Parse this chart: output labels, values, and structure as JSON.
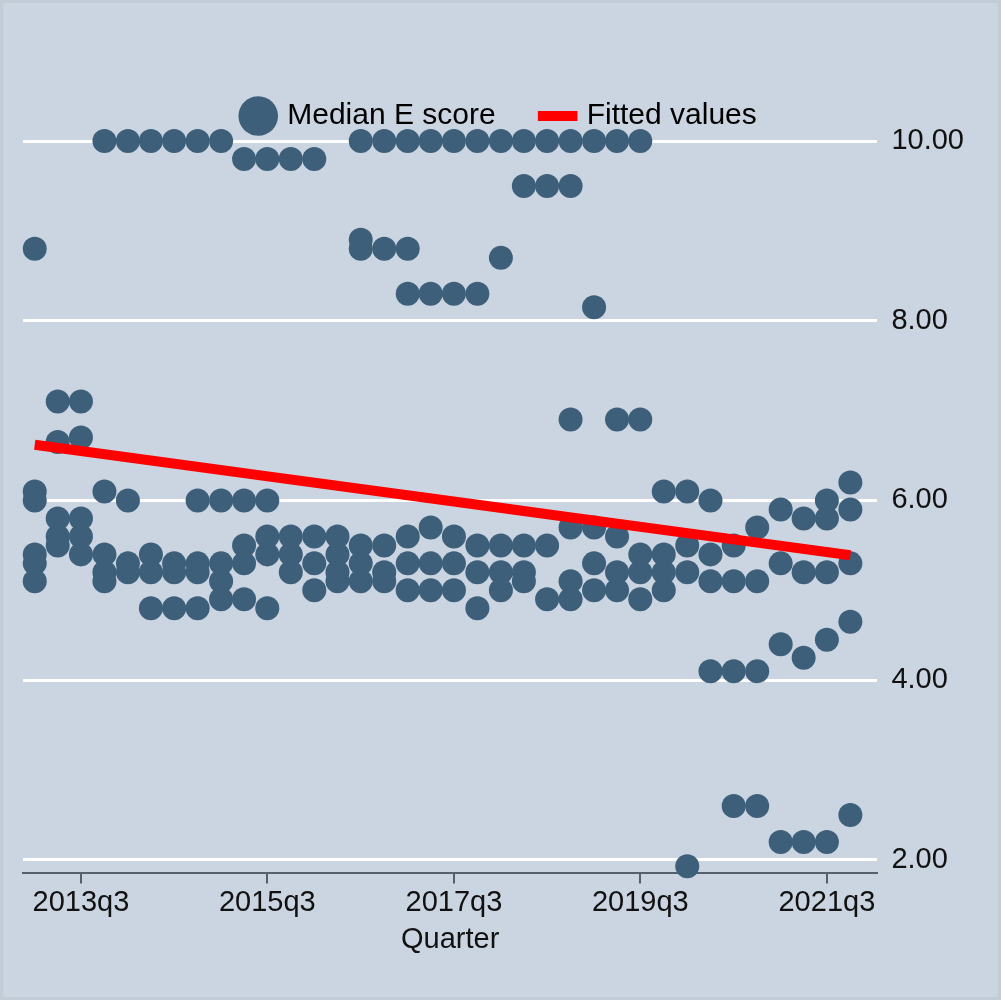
{
  "chart_data": {
    "type": "scatter",
    "xlabel": "Quarter",
    "legend": "top",
    "grid": "y",
    "xlim": [
      "2012-11-16",
      "2022-01-15"
    ],
    "xticks": [
      {
        "value": "2013-07",
        "label": "2013q3"
      },
      {
        "value": "2015-07",
        "label": "2015q3"
      },
      {
        "value": "2017-07",
        "label": "2017q3"
      },
      {
        "value": "2019-07",
        "label": "2019q3"
      },
      {
        "value": "2021-07",
        "label": "2021q3"
      }
    ],
    "ylim": [
      1.85,
      10
    ],
    "yticks": [
      {
        "value": 2,
        "label": "2.00"
      },
      {
        "value": 4,
        "label": "4.00"
      },
      {
        "value": 6,
        "label": "6.00"
      },
      {
        "value": 8,
        "label": "8.00"
      },
      {
        "value": 10,
        "label": "10.00"
      }
    ],
    "series": [
      {
        "name": "Median E score",
        "type": "scatter",
        "marker": "circle",
        "color": "#3d5f7a",
        "x": [
          "2013-01",
          "2013-01",
          "2013-01",
          "2013-01",
          "2013-01",
          "2013-01",
          "2013-04",
          "2013-04",
          "2013-04",
          "2013-04",
          "2013-04",
          "2013-07",
          "2013-07",
          "2013-07",
          "2013-07",
          "2013-07",
          "2013-10",
          "2013-10",
          "2013-10",
          "2013-10",
          "2013-10",
          "2014-01",
          "2014-01",
          "2014-01",
          "2014-01",
          "2014-04",
          "2014-04",
          "2014-04",
          "2014-04",
          "2014-07",
          "2014-07",
          "2014-07",
          "2014-07",
          "2014-10",
          "2014-10",
          "2014-10",
          "2014-10",
          "2014-10",
          "2015-01",
          "2015-01",
          "2015-01",
          "2015-01",
          "2015-01",
          "2015-04",
          "2015-04",
          "2015-04",
          "2015-04",
          "2015-04",
          "2015-07",
          "2015-07",
          "2015-07",
          "2015-07",
          "2015-07",
          "2015-10",
          "2015-10",
          "2015-10",
          "2015-10",
          "2016-01",
          "2016-01",
          "2016-01",
          "2016-01",
          "2016-04",
          "2016-04",
          "2016-04",
          "2016-04",
          "2016-07",
          "2016-07",
          "2016-07",
          "2016-07",
          "2016-07",
          "2016-07",
          "2016-10",
          "2016-10",
          "2016-10",
          "2016-10",
          "2016-10",
          "2017-01",
          "2017-01",
          "2017-01",
          "2017-01",
          "2017-01",
          "2017-01",
          "2017-04",
          "2017-04",
          "2017-04",
          "2017-04",
          "2017-04",
          "2017-07",
          "2017-07",
          "2017-07",
          "2017-07",
          "2017-07",
          "2017-10",
          "2017-10",
          "2017-10",
          "2017-10",
          "2017-10",
          "2018-01",
          "2018-01",
          "2018-01",
          "2018-01",
          "2018-01",
          "2018-04",
          "2018-04",
          "2018-04",
          "2018-04",
          "2018-04",
          "2018-07",
          "2018-07",
          "2018-07",
          "2018-07",
          "2018-10",
          "2018-10",
          "2018-10",
          "2018-10",
          "2018-10",
          "2018-10",
          "2019-01",
          "2019-01",
          "2019-01",
          "2019-01",
          "2019-01",
          "2019-04",
          "2019-04",
          "2019-04",
          "2019-04",
          "2019-04",
          "2019-07",
          "2019-07",
          "2019-07",
          "2019-07",
          "2019-07",
          "2019-10",
          "2019-10",
          "2019-10",
          "2019-10",
          "2020-01",
          "2020-01",
          "2020-01",
          "2020-01",
          "2020-04",
          "2020-04",
          "2020-04",
          "2020-04",
          "2020-07",
          "2020-07",
          "2020-07",
          "2020-07",
          "2020-10",
          "2020-10",
          "2020-10",
          "2020-10",
          "2021-01",
          "2021-01",
          "2021-01",
          "2021-01",
          "2021-04",
          "2021-04",
          "2021-04",
          "2021-04",
          "2021-07",
          "2021-07",
          "2021-07",
          "2021-07",
          "2021-07",
          "2021-10",
          "2021-10",
          "2021-10",
          "2021-10",
          "2021-10"
        ],
        "values": [
          8.8,
          6.1,
          6.0,
          5.4,
          5.3,
          5.1,
          7.1,
          6.65,
          5.8,
          5.6,
          5.5,
          7.1,
          6.7,
          5.8,
          5.6,
          5.4,
          10,
          6.1,
          5.4,
          5.2,
          5.1,
          10,
          6.0,
          5.3,
          5.2,
          10,
          5.4,
          5.2,
          4.8,
          10,
          5.3,
          5.2,
          4.8,
          10,
          6.0,
          5.3,
          5.2,
          4.8,
          10,
          6.0,
          5.3,
          5.1,
          4.9,
          9.8,
          6.0,
          5.5,
          5.3,
          4.9,
          9.8,
          6.0,
          5.6,
          5.4,
          4.8,
          9.8,
          5.6,
          5.4,
          5.2,
          9.8,
          5.6,
          5.3,
          5.0,
          5.6,
          5.4,
          5.2,
          5.1,
          10,
          8.9,
          8.8,
          5.5,
          5.3,
          5.1,
          10,
          8.8,
          5.5,
          5.2,
          5.1,
          10,
          8.8,
          8.3,
          5.6,
          5.3,
          5.0,
          10,
          8.3,
          5.7,
          5.3,
          5.0,
          10,
          8.3,
          5.6,
          5.3,
          5.0,
          10,
          8.3,
          5.5,
          5.2,
          4.8,
          10,
          8.7,
          5.5,
          5.2,
          5.0,
          10,
          9.5,
          5.5,
          5.2,
          5.1,
          10,
          9.5,
          5.5,
          4.9,
          10,
          9.5,
          6.9,
          5.7,
          5.1,
          4.9,
          10,
          8.15,
          5.7,
          5.3,
          5.0,
          10,
          6.9,
          5.6,
          5.2,
          5.0,
          10,
          6.9,
          5.4,
          5.2,
          4.9,
          6.1,
          5.4,
          5.2,
          5.0,
          6.1,
          5.5,
          5.2,
          1.93,
          6.0,
          5.4,
          5.1,
          4.1,
          5.5,
          5.1,
          4.1,
          2.6,
          5.7,
          5.1,
          4.1,
          2.6,
          5.9,
          5.3,
          4.4,
          2.2,
          5.8,
          5.2,
          4.25,
          2.2,
          6.0,
          5.8,
          5.2,
          4.45,
          2.2,
          6.2,
          5.9,
          5.3,
          4.65,
          2.5
        ]
      },
      {
        "name": "Fitted values",
        "type": "line",
        "line_style": "solid",
        "color": "#ff0000",
        "x": [
          "2013-01",
          "2021-10"
        ],
        "values": [
          6.62,
          5.39
        ]
      }
    ]
  }
}
